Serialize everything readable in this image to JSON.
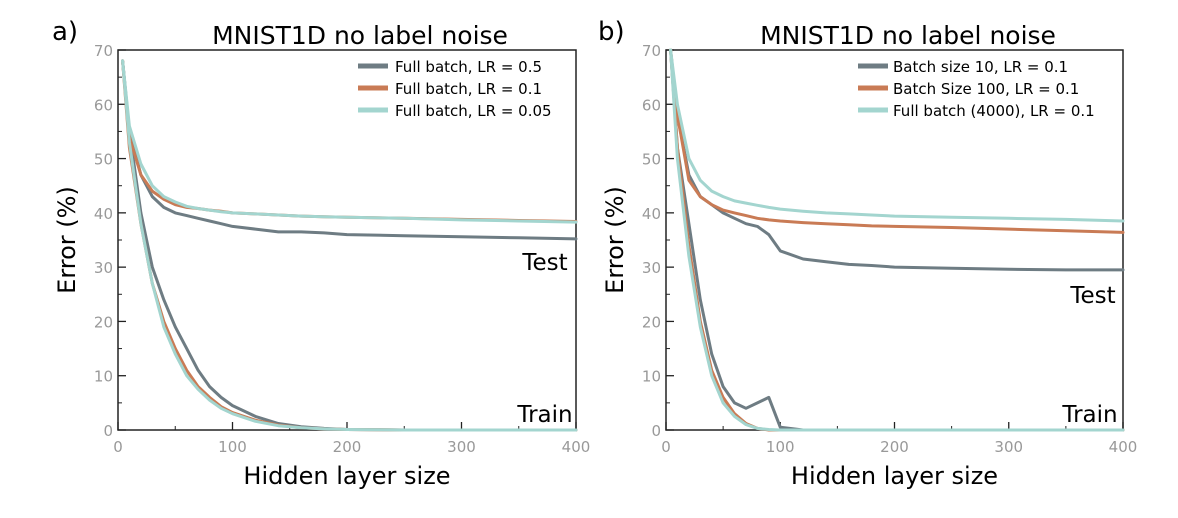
{
  "chart_data": [
    {
      "panel_label": "a)",
      "type": "line",
      "title": "MNIST1D no label noise",
      "xlabel": "Hidden layer size",
      "ylabel": "Error (%)",
      "xlim": [
        0,
        400
      ],
      "ylim": [
        0,
        70
      ],
      "xticks": [
        0,
        100,
        200,
        300,
        400
      ],
      "yticks": [
        0,
        10,
        20,
        30,
        40,
        50,
        60,
        70
      ],
      "grid": false,
      "legend_position": "top-right",
      "annotations": [
        "Test",
        "Train"
      ],
      "x": [
        4,
        10,
        20,
        30,
        40,
        50,
        60,
        70,
        80,
        90,
        100,
        120,
        140,
        160,
        180,
        200,
        250,
        300,
        350,
        400
      ],
      "series": [
        {
          "name": "Full batch, LR = 0.5",
          "color": "#6e7c83",
          "test": [
            68,
            55,
            47,
            43,
            41,
            40,
            39.5,
            39,
            38.5,
            38,
            37.5,
            37,
            36.5,
            36.5,
            36.3,
            36,
            35.8,
            35.6,
            35.4,
            35.2
          ],
          "train": [
            68,
            55,
            40,
            30,
            24,
            19,
            15,
            11,
            8,
            6,
            4.5,
            2.5,
            1.2,
            0.6,
            0.3,
            0.1,
            0,
            0,
            0,
            0
          ]
        },
        {
          "name": "Full batch, LR = 0.1",
          "color": "#c97b55",
          "test": [
            68,
            54,
            47,
            44,
            42.5,
            41.5,
            41,
            40.8,
            40.5,
            40.3,
            40,
            39.8,
            39.6,
            39.4,
            39.3,
            39.2,
            39,
            38.8,
            38.6,
            38.4
          ],
          "train": [
            68,
            52,
            38,
            27,
            20,
            15,
            11,
            8,
            6,
            4.3,
            3.2,
            1.8,
            0.9,
            0.4,
            0.2,
            0.1,
            0,
            0,
            0,
            0
          ]
        },
        {
          "name": "Full batch, LR = 0.05",
          "color": "#a3d5cf",
          "test": [
            68,
            56,
            49,
            45,
            43,
            42,
            41.2,
            40.8,
            40.5,
            40.2,
            40,
            39.8,
            39.6,
            39.4,
            39.3,
            39.2,
            39,
            38.7,
            38.5,
            38.3
          ],
          "train": [
            68,
            53,
            38,
            27,
            19,
            14,
            10,
            7.5,
            5.5,
            4,
            3,
            1.6,
            0.8,
            0.4,
            0.2,
            0.1,
            0,
            0,
            0,
            0
          ]
        }
      ]
    },
    {
      "panel_label": "b)",
      "type": "line",
      "title": "MNIST1D no label noise",
      "xlabel": "Hidden layer size",
      "ylabel": "Error (%)",
      "xlim": [
        0,
        400
      ],
      "ylim": [
        0,
        70
      ],
      "xticks": [
        0,
        100,
        200,
        300,
        400
      ],
      "yticks": [
        0,
        10,
        20,
        30,
        40,
        50,
        60,
        70
      ],
      "grid": false,
      "legend_position": "top-right",
      "annotations": [
        "Test",
        "Train"
      ],
      "x": [
        4,
        10,
        20,
        30,
        40,
        50,
        60,
        70,
        80,
        90,
        100,
        120,
        140,
        160,
        180,
        200,
        250,
        300,
        350,
        400
      ],
      "series": [
        {
          "name": "Batch size 10, LR = 0.1",
          "color": "#6e7c83",
          "test": [
            70,
            58,
            47,
            43,
            41.5,
            40,
            39,
            38,
            37.5,
            36,
            33,
            31.5,
            31,
            30.5,
            30.3,
            30,
            29.8,
            29.6,
            29.5,
            29.5
          ],
          "train": [
            70,
            52,
            38,
            24,
            14,
            8,
            5,
            4,
            5,
            6,
            0.5,
            0,
            0,
            0,
            0,
            0,
            0,
            0,
            0,
            0
          ]
        },
        {
          "name": "Batch Size 100, LR = 0.1",
          "color": "#c97b55",
          "test": [
            70,
            58,
            46,
            43,
            41.5,
            40.5,
            40,
            39.5,
            39,
            38.7,
            38.5,
            38.2,
            38,
            37.8,
            37.6,
            37.5,
            37.3,
            37,
            36.7,
            36.4
          ],
          "train": [
            70,
            52,
            34,
            20,
            11,
            6,
            3,
            1.2,
            0.3,
            0,
            0,
            0,
            0,
            0,
            0,
            0,
            0,
            0,
            0,
            0
          ]
        },
        {
          "name": "Full batch (4000), LR = 0.1",
          "color": "#a3d5cf",
          "test": [
            70,
            60,
            50,
            46,
            44,
            43,
            42.2,
            41.8,
            41.4,
            41,
            40.7,
            40.3,
            40,
            39.8,
            39.6,
            39.4,
            39.2,
            39,
            38.8,
            38.5
          ],
          "train": [
            70,
            50,
            32,
            19,
            10,
            5,
            2.5,
            1,
            0.3,
            0.1,
            0,
            0,
            0,
            0,
            0,
            0,
            0,
            0,
            0,
            0
          ]
        }
      ]
    }
  ]
}
